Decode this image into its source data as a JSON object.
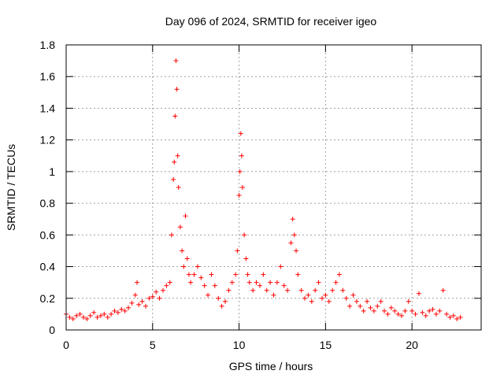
{
  "chart_data": {
    "type": "scatter",
    "title": "Day 096 of 2024, SRMTID for receiver igeo",
    "xlabel": "GPS time / hours",
    "ylabel": "SRMTID / TECUs",
    "xlim": [
      0,
      24
    ],
    "ylim": [
      0,
      1.8
    ],
    "xticks": [
      0,
      5,
      10,
      15,
      20
    ],
    "xtick_labels": [
      "0",
      "5",
      "10",
      "15",
      "20"
    ],
    "yticks": [
      0,
      0.2,
      0.4,
      0.6,
      0.8,
      1,
      1.2,
      1.4,
      1.6,
      1.8
    ],
    "ytick_labels": [
      "0",
      "0.2",
      "0.4",
      "0.6",
      "0.8",
      "1",
      "1.2",
      "1.4",
      "1.6",
      "1.8"
    ],
    "grid": true,
    "marker": "+",
    "color": "#ff0000",
    "series": [
      {
        "name": "SRMTID",
        "x": [
          0.0,
          0.2,
          0.4,
          0.6,
          0.8,
          1.0,
          1.2,
          1.4,
          1.6,
          1.8,
          2.0,
          2.2,
          2.4,
          2.6,
          2.8,
          3.0,
          3.2,
          3.4,
          3.6,
          3.8,
          4.0,
          4.1,
          4.2,
          4.4,
          4.6,
          4.8,
          5.0,
          5.2,
          5.4,
          5.6,
          5.8,
          6.0,
          6.1,
          6.2,
          6.25,
          6.3,
          6.35,
          6.4,
          6.45,
          6.5,
          6.6,
          6.7,
          6.8,
          6.9,
          7.0,
          7.1,
          7.2,
          7.4,
          7.6,
          7.8,
          8.0,
          8.2,
          8.4,
          8.6,
          8.8,
          9.0,
          9.2,
          9.4,
          9.6,
          9.8,
          9.9,
          10.0,
          10.05,
          10.1,
          10.15,
          10.2,
          10.3,
          10.4,
          10.5,
          10.6,
          10.8,
          11.0,
          11.2,
          11.4,
          11.6,
          11.8,
          12.0,
          12.2,
          12.4,
          12.6,
          12.8,
          13.0,
          13.1,
          13.2,
          13.3,
          13.4,
          13.6,
          13.8,
          14.0,
          14.2,
          14.4,
          14.6,
          14.8,
          15.0,
          15.2,
          15.4,
          15.6,
          15.8,
          16.0,
          16.2,
          16.4,
          16.6,
          16.8,
          17.0,
          17.2,
          17.4,
          17.6,
          17.8,
          18.0,
          18.2,
          18.4,
          18.6,
          18.8,
          19.0,
          19.2,
          19.4,
          19.6,
          19.8,
          20.0,
          20.2,
          20.4,
          20.6,
          20.8,
          21.0,
          21.2,
          21.4,
          21.6,
          21.8,
          22.0,
          22.2,
          22.4,
          22.6,
          22.8
        ],
        "y": [
          0.1,
          0.08,
          0.07,
          0.09,
          0.1,
          0.08,
          0.07,
          0.09,
          0.11,
          0.08,
          0.09,
          0.1,
          0.08,
          0.1,
          0.12,
          0.11,
          0.13,
          0.12,
          0.14,
          0.17,
          0.22,
          0.3,
          0.16,
          0.18,
          0.15,
          0.2,
          0.21,
          0.24,
          0.2,
          0.25,
          0.28,
          0.3,
          0.6,
          0.95,
          1.06,
          1.35,
          1.7,
          1.52,
          1.1,
          0.9,
          0.65,
          0.5,
          0.4,
          0.72,
          0.45,
          0.35,
          0.3,
          0.35,
          0.4,
          0.33,
          0.28,
          0.22,
          0.35,
          0.28,
          0.2,
          0.15,
          0.18,
          0.25,
          0.3,
          0.35,
          0.5,
          0.85,
          1.0,
          1.24,
          1.1,
          0.9,
          0.6,
          0.45,
          0.35,
          0.3,
          0.25,
          0.3,
          0.28,
          0.35,
          0.25,
          0.3,
          0.22,
          0.3,
          0.4,
          0.28,
          0.25,
          0.55,
          0.7,
          0.6,
          0.5,
          0.35,
          0.25,
          0.2,
          0.22,
          0.18,
          0.25,
          0.3,
          0.2,
          0.22,
          0.18,
          0.25,
          0.3,
          0.35,
          0.25,
          0.2,
          0.15,
          0.22,
          0.18,
          0.15,
          0.12,
          0.18,
          0.14,
          0.12,
          0.15,
          0.18,
          0.12,
          0.1,
          0.14,
          0.12,
          0.1,
          0.09,
          0.12,
          0.18,
          0.12,
          0.1,
          0.23,
          0.11,
          0.09,
          0.12,
          0.13,
          0.1,
          0.12,
          0.25,
          0.1,
          0.08,
          0.09,
          0.07,
          0.08
        ]
      }
    ]
  }
}
